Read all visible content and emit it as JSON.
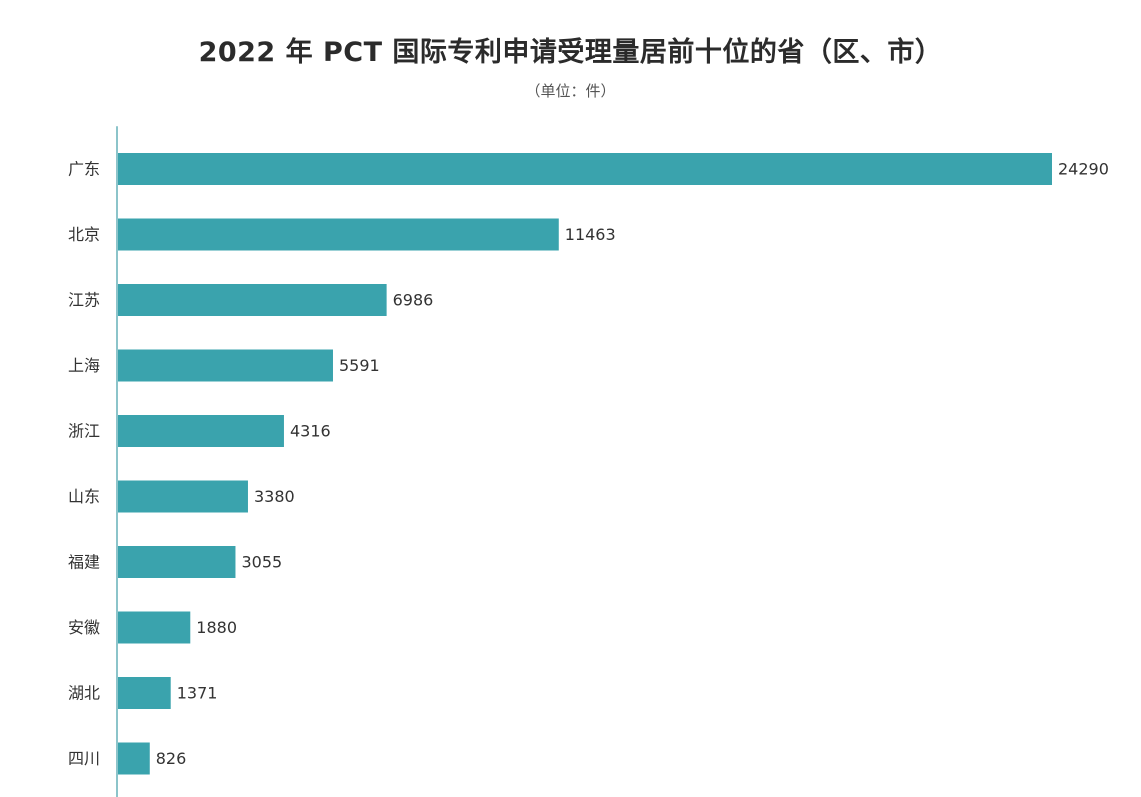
{
  "chart_data": {
    "type": "bar",
    "orientation": "horizontal",
    "title": "2022 年 PCT 国际专利申请受理量居前十位的省（区、市）",
    "subtitle": "（单位：件）",
    "categories": [
      "广东",
      "北京",
      "江苏",
      "上海",
      "浙江",
      "山东",
      "福建",
      "安徽",
      "湖北",
      "四川"
    ],
    "values": [
      24290,
      11463,
      6986,
      5591,
      4316,
      3380,
      3055,
      1880,
      1371,
      826
    ],
    "xlim": [
      0,
      24290
    ],
    "grid": false,
    "bar_color": "#3aa3ad",
    "axis_color": "#8cc4ca"
  }
}
